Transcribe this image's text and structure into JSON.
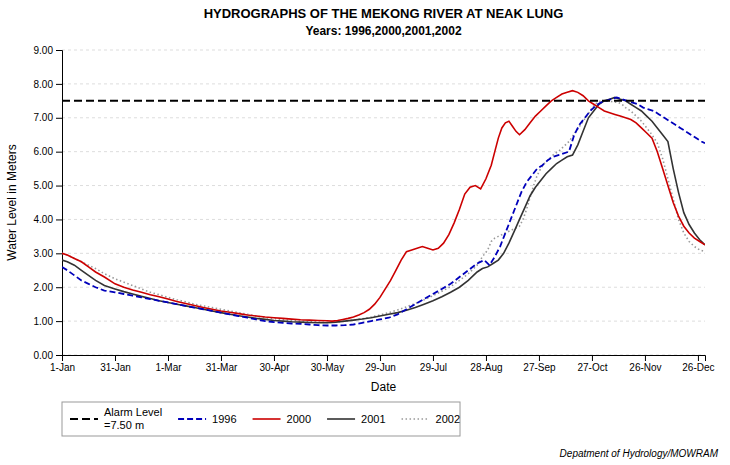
{
  "chart_data": {
    "type": "line",
    "title": "HYDROGRAPHS OF THE MEKONG RIVER AT NEAK LUNG",
    "subtitle": "Years: 1996,2000,2001,2002",
    "x_label": "Date",
    "y_label": "Water Level in Meters",
    "xlim": [
      1,
      365
    ],
    "xticks": [
      {
        "value": 1,
        "label": "1-Jan"
      },
      {
        "value": 31,
        "label": "31-Jan"
      },
      {
        "value": 61,
        "label": "1-Mar"
      },
      {
        "value": 91,
        "label": "31-Mar"
      },
      {
        "value": 121,
        "label": "30-Apr"
      },
      {
        "value": 151,
        "label": "30-May"
      },
      {
        "value": 181,
        "label": "29-Jun"
      },
      {
        "value": 211,
        "label": "29-Jul"
      },
      {
        "value": 241,
        "label": "28-Aug"
      },
      {
        "value": 271,
        "label": "27-Sep"
      },
      {
        "value": 301,
        "label": "27-Oct"
      },
      {
        "value": 331,
        "label": "26-Nov"
      },
      {
        "value": 361,
        "label": "26-Dec"
      }
    ],
    "ylim": [
      0.0,
      9.0
    ],
    "yticks": [
      {
        "value": 0.0,
        "label": "0.00"
      },
      {
        "value": 1.0,
        "label": "1.00"
      },
      {
        "value": 2.0,
        "label": "2.00"
      },
      {
        "value": 3.0,
        "label": "3.00"
      },
      {
        "value": 4.0,
        "label": "4.00"
      },
      {
        "value": 5.0,
        "label": "5.00"
      },
      {
        "value": 6.0,
        "label": "6.00"
      },
      {
        "value": 7.0,
        "label": "7.00"
      },
      {
        "value": 8.0,
        "label": "8.00"
      },
      {
        "value": 9.0,
        "label": "9.00"
      }
    ],
    "grid": true,
    "legend": "bottom",
    "reference_lines": [
      {
        "value": 7.5,
        "label": "Alarm Level",
        "sublabel": "=7.50 m",
        "color": "#000000",
        "line_style": "dashed"
      }
    ],
    "annotations": [
      "Depatment of Hydrology/MOWRAM"
    ],
    "series": [
      {
        "name": "1996",
        "color": "#0000BB",
        "line_style": "dashed",
        "x": [
          1,
          4,
          8,
          12,
          16,
          20,
          25,
          31,
          36,
          41,
          46,
          51,
          56,
          61,
          66,
          71,
          76,
          81,
          86,
          91,
          96,
          101,
          106,
          111,
          116,
          121,
          126,
          131,
          136,
          141,
          146,
          151,
          156,
          161,
          166,
          171,
          176,
          181,
          186,
          191,
          196,
          201,
          206,
          211,
          216,
          221,
          226,
          231,
          236,
          240,
          243,
          246,
          249,
          252,
          255,
          258,
          261,
          264,
          267,
          270,
          273,
          276,
          279,
          282,
          285,
          288,
          291,
          294,
          297,
          300,
          303,
          306,
          309,
          312,
          315,
          318,
          321,
          324,
          327,
          330,
          333,
          336,
          339,
          342,
          345,
          348,
          351,
          354,
          357,
          360,
          363,
          365
        ],
        "values": [
          2.6,
          2.5,
          2.35,
          2.2,
          2.1,
          2.0,
          1.9,
          1.85,
          1.8,
          1.75,
          1.7,
          1.65,
          1.6,
          1.55,
          1.5,
          1.45,
          1.4,
          1.35,
          1.3,
          1.25,
          1.2,
          1.15,
          1.1,
          1.05,
          1.0,
          0.97,
          0.95,
          0.93,
          0.92,
          0.9,
          0.88,
          0.87,
          0.87,
          0.88,
          0.9,
          0.95,
          1.0,
          1.05,
          1.1,
          1.2,
          1.35,
          1.5,
          1.65,
          1.8,
          1.95,
          2.1,
          2.3,
          2.5,
          2.7,
          2.8,
          2.65,
          2.9,
          3.2,
          3.6,
          4.0,
          4.4,
          4.8,
          5.1,
          5.3,
          5.5,
          5.6,
          5.75,
          5.85,
          5.9,
          5.95,
          6.0,
          6.5,
          6.8,
          7.0,
          7.2,
          7.35,
          7.45,
          7.5,
          7.55,
          7.6,
          7.55,
          7.5,
          7.45,
          7.4,
          7.3,
          7.25,
          7.2,
          7.1,
          7.0,
          6.9,
          6.8,
          6.7,
          6.6,
          6.5,
          6.4,
          6.3,
          6.25
        ]
      },
      {
        "name": "2000",
        "color": "#CC0000",
        "line_style": "solid",
        "x": [
          1,
          4,
          8,
          12,
          16,
          20,
          25,
          31,
          36,
          41,
          46,
          51,
          56,
          61,
          66,
          71,
          76,
          81,
          86,
          91,
          96,
          101,
          106,
          111,
          116,
          121,
          126,
          131,
          136,
          141,
          146,
          151,
          154,
          157,
          160,
          163,
          166,
          169,
          172,
          175,
          178,
          181,
          184,
          187,
          190,
          193,
          196,
          199,
          202,
          205,
          208,
          211,
          214,
          217,
          220,
          223,
          226,
          229,
          232,
          235,
          238,
          241,
          244,
          246,
          248,
          250,
          252,
          254,
          256,
          258,
          260,
          263,
          266,
          269,
          272,
          275,
          278,
          281,
          284,
          287,
          290,
          293,
          296,
          299,
          302,
          305,
          308,
          311,
          314,
          317,
          320,
          323,
          326,
          329,
          332,
          335,
          338,
          341,
          344,
          347,
          350,
          353,
          356,
          359,
          362,
          365
        ],
        "values": [
          3.0,
          2.95,
          2.85,
          2.75,
          2.6,
          2.45,
          2.3,
          2.1,
          2.0,
          1.92,
          1.85,
          1.78,
          1.72,
          1.65,
          1.58,
          1.52,
          1.46,
          1.4,
          1.35,
          1.3,
          1.26,
          1.22,
          1.18,
          1.15,
          1.12,
          1.1,
          1.08,
          1.06,
          1.04,
          1.03,
          1.02,
          1.01,
          1.0,
          1.02,
          1.05,
          1.08,
          1.12,
          1.18,
          1.25,
          1.35,
          1.5,
          1.7,
          1.95,
          2.2,
          2.5,
          2.8,
          3.05,
          3.1,
          3.15,
          3.2,
          3.15,
          3.1,
          3.15,
          3.3,
          3.55,
          3.9,
          4.3,
          4.75,
          4.95,
          5.0,
          4.9,
          5.2,
          5.6,
          6.0,
          6.4,
          6.7,
          6.85,
          6.9,
          6.75,
          6.6,
          6.5,
          6.65,
          6.85,
          7.05,
          7.2,
          7.35,
          7.5,
          7.6,
          7.7,
          7.75,
          7.8,
          7.75,
          7.65,
          7.5,
          7.4,
          7.3,
          7.2,
          7.15,
          7.1,
          7.05,
          7.0,
          6.95,
          6.85,
          6.7,
          6.55,
          6.4,
          6.0,
          5.5,
          5.0,
          4.5,
          4.1,
          3.8,
          3.6,
          3.45,
          3.35,
          3.25
        ]
      },
      {
        "name": "2001",
        "color": "#333333",
        "line_style": "solid",
        "x": [
          1,
          4,
          8,
          12,
          16,
          20,
          25,
          31,
          36,
          41,
          46,
          51,
          56,
          61,
          66,
          71,
          76,
          81,
          86,
          91,
          96,
          101,
          106,
          111,
          116,
          121,
          126,
          131,
          136,
          141,
          146,
          151,
          156,
          161,
          166,
          171,
          176,
          181,
          186,
          191,
          196,
          201,
          206,
          211,
          216,
          221,
          226,
          231,
          236,
          239,
          242,
          245,
          248,
          251,
          254,
          257,
          260,
          263,
          266,
          269,
          272,
          275,
          278,
          281,
          284,
          287,
          290,
          293,
          296,
          299,
          302,
          305,
          308,
          311,
          314,
          317,
          320,
          323,
          326,
          329,
          332,
          335,
          338,
          341,
          344,
          347,
          350,
          353,
          356,
          359,
          362,
          365
        ],
        "values": [
          2.8,
          2.75,
          2.65,
          2.5,
          2.35,
          2.2,
          2.05,
          1.95,
          1.87,
          1.8,
          1.73,
          1.67,
          1.6,
          1.55,
          1.5,
          1.45,
          1.4,
          1.35,
          1.3,
          1.25,
          1.2,
          1.16,
          1.12,
          1.08,
          1.05,
          1.02,
          1.0,
          0.98,
          0.97,
          0.96,
          0.95,
          0.95,
          0.97,
          1.0,
          1.03,
          1.06,
          1.1,
          1.15,
          1.2,
          1.25,
          1.32,
          1.4,
          1.5,
          1.6,
          1.72,
          1.85,
          2.0,
          2.2,
          2.45,
          2.55,
          2.6,
          2.7,
          2.8,
          3.0,
          3.3,
          3.65,
          4.0,
          4.35,
          4.7,
          4.95,
          5.15,
          5.35,
          5.5,
          5.65,
          5.75,
          5.85,
          5.9,
          6.2,
          6.6,
          7.0,
          7.2,
          7.4,
          7.5,
          7.55,
          7.6,
          7.55,
          7.5,
          7.4,
          7.3,
          7.2,
          7.05,
          6.9,
          6.7,
          6.5,
          6.3,
          5.5,
          4.8,
          4.2,
          3.85,
          3.6,
          3.4,
          3.25
        ]
      },
      {
        "name": "2002",
        "color": "#999999",
        "line_style": "dotted",
        "x": [
          1,
          4,
          8,
          12,
          16,
          20,
          25,
          31,
          36,
          41,
          46,
          51,
          56,
          61,
          66,
          71,
          76,
          81,
          86,
          91,
          96,
          101,
          106,
          111,
          116,
          121,
          126,
          131,
          136,
          141,
          146,
          151,
          156,
          161,
          166,
          171,
          176,
          181,
          186,
          191,
          196,
          201,
          206,
          211,
          216,
          221,
          226,
          231,
          236,
          239,
          242,
          244,
          246,
          248,
          250,
          252,
          254,
          256,
          258,
          260,
          262,
          264,
          266,
          268,
          270,
          272,
          274,
          276,
          278,
          280,
          282,
          284,
          286,
          288,
          290,
          292,
          294,
          296,
          298,
          300,
          302,
          304,
          306,
          308,
          310,
          312,
          314,
          316,
          318,
          320,
          323,
          326,
          329,
          332,
          335,
          338,
          341,
          344,
          347,
          350,
          353,
          356,
          359,
          362,
          365
        ],
        "values": [
          3.0,
          2.95,
          2.85,
          2.75,
          2.65,
          2.55,
          2.4,
          2.25,
          2.15,
          2.05,
          1.95,
          1.85,
          1.78,
          1.7,
          1.63,
          1.57,
          1.5,
          1.45,
          1.4,
          1.35,
          1.3,
          1.25,
          1.2,
          1.15,
          1.1,
          1.07,
          1.04,
          1.02,
          1.0,
          0.98,
          0.97,
          0.96,
          0.97,
          1.0,
          1.03,
          1.07,
          1.12,
          1.18,
          1.25,
          1.33,
          1.42,
          1.52,
          1.63,
          1.75,
          1.88,
          2.02,
          2.2,
          2.4,
          2.65,
          2.9,
          3.1,
          3.35,
          3.45,
          3.5,
          3.55,
          3.6,
          3.65,
          3.7,
          3.75,
          3.8,
          4.0,
          4.3,
          4.65,
          5.0,
          5.3,
          5.5,
          5.65,
          5.75,
          5.85,
          5.95,
          6.0,
          6.1,
          6.2,
          6.3,
          6.45,
          6.6,
          6.75,
          6.9,
          7.05,
          7.2,
          7.35,
          7.45,
          7.5,
          7.5,
          7.5,
          7.48,
          7.46,
          7.45,
          7.4,
          7.3,
          7.2,
          7.05,
          6.9,
          6.7,
          6.5,
          6.25,
          5.8,
          5.2,
          4.6,
          4.0,
          3.6,
          3.35,
          3.2,
          3.1,
          3.05
        ]
      }
    ]
  }
}
